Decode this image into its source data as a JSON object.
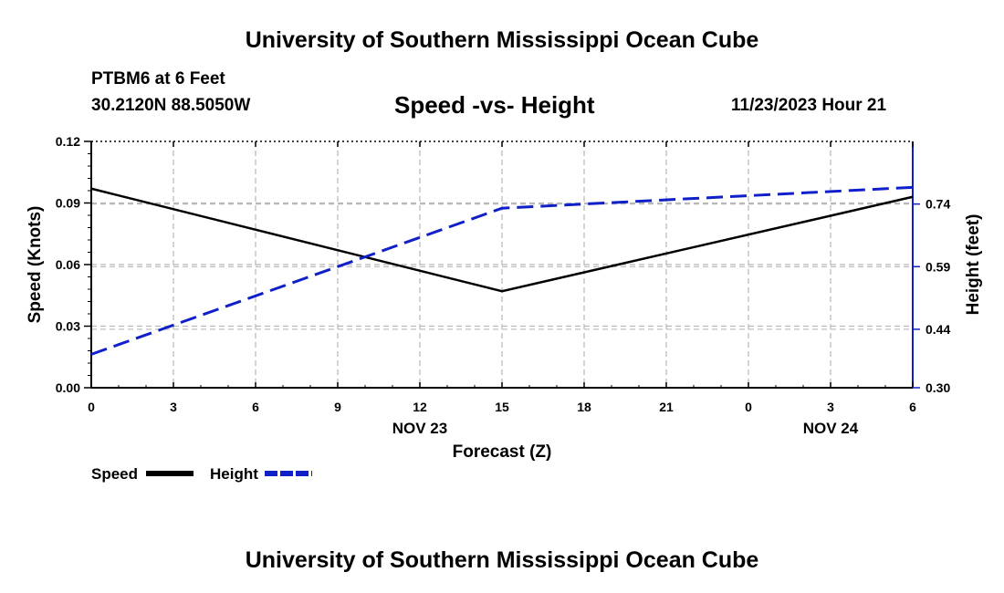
{
  "header": {
    "title": "University of Southern Mississippi Ocean Cube",
    "station": "PTBM6 at 6 Feet",
    "coords": "30.2120N  88.5050W",
    "chart_title": "Speed -vs- Height",
    "datetime": "11/23/2023 Hour 21"
  },
  "footer": {
    "title": "University of Southern Mississippi Ocean Cube"
  },
  "colors": {
    "speed": "#000000",
    "height": "#1020c8",
    "grid": "#b8b8b8"
  },
  "chart_data": {
    "type": "line",
    "x": [
      0,
      3,
      6,
      9,
      12,
      15,
      18,
      21,
      24,
      27,
      30
    ],
    "x_tick_labels": [
      "0",
      "3",
      "6",
      "9",
      "12",
      "15",
      "18",
      "21",
      "0",
      "3",
      "6"
    ],
    "x_date_labels": [
      {
        "label": "NOV 23",
        "at": 12
      },
      {
        "label": "NOV 24",
        "at": 27
      }
    ],
    "xlabel": "Forecast (Z)",
    "xlim": [
      0,
      30
    ],
    "y_left": {
      "label": "Speed (Knots)",
      "lim": [
        0,
        0.12
      ],
      "ticks": [
        "0.00",
        "0.03",
        "0.06",
        "0.09",
        "0.12"
      ]
    },
    "y_right": {
      "label": "Height (feet)",
      "lim": [
        0.3,
        0.89
      ],
      "ticks": [
        "0.30",
        "0.44",
        "0.59",
        "0.74"
      ]
    },
    "series": [
      {
        "name": "Speed",
        "axis": "left",
        "style": "solid",
        "x": [
          0,
          15,
          30
        ],
        "values": [
          0.097,
          0.047,
          0.093
        ]
      },
      {
        "name": "Height",
        "axis": "right",
        "style": "dashed",
        "x": [
          0,
          15,
          30
        ],
        "values": [
          0.38,
          0.73,
          0.78
        ]
      }
    ],
    "grid": true,
    "legend": "bottom-left"
  }
}
